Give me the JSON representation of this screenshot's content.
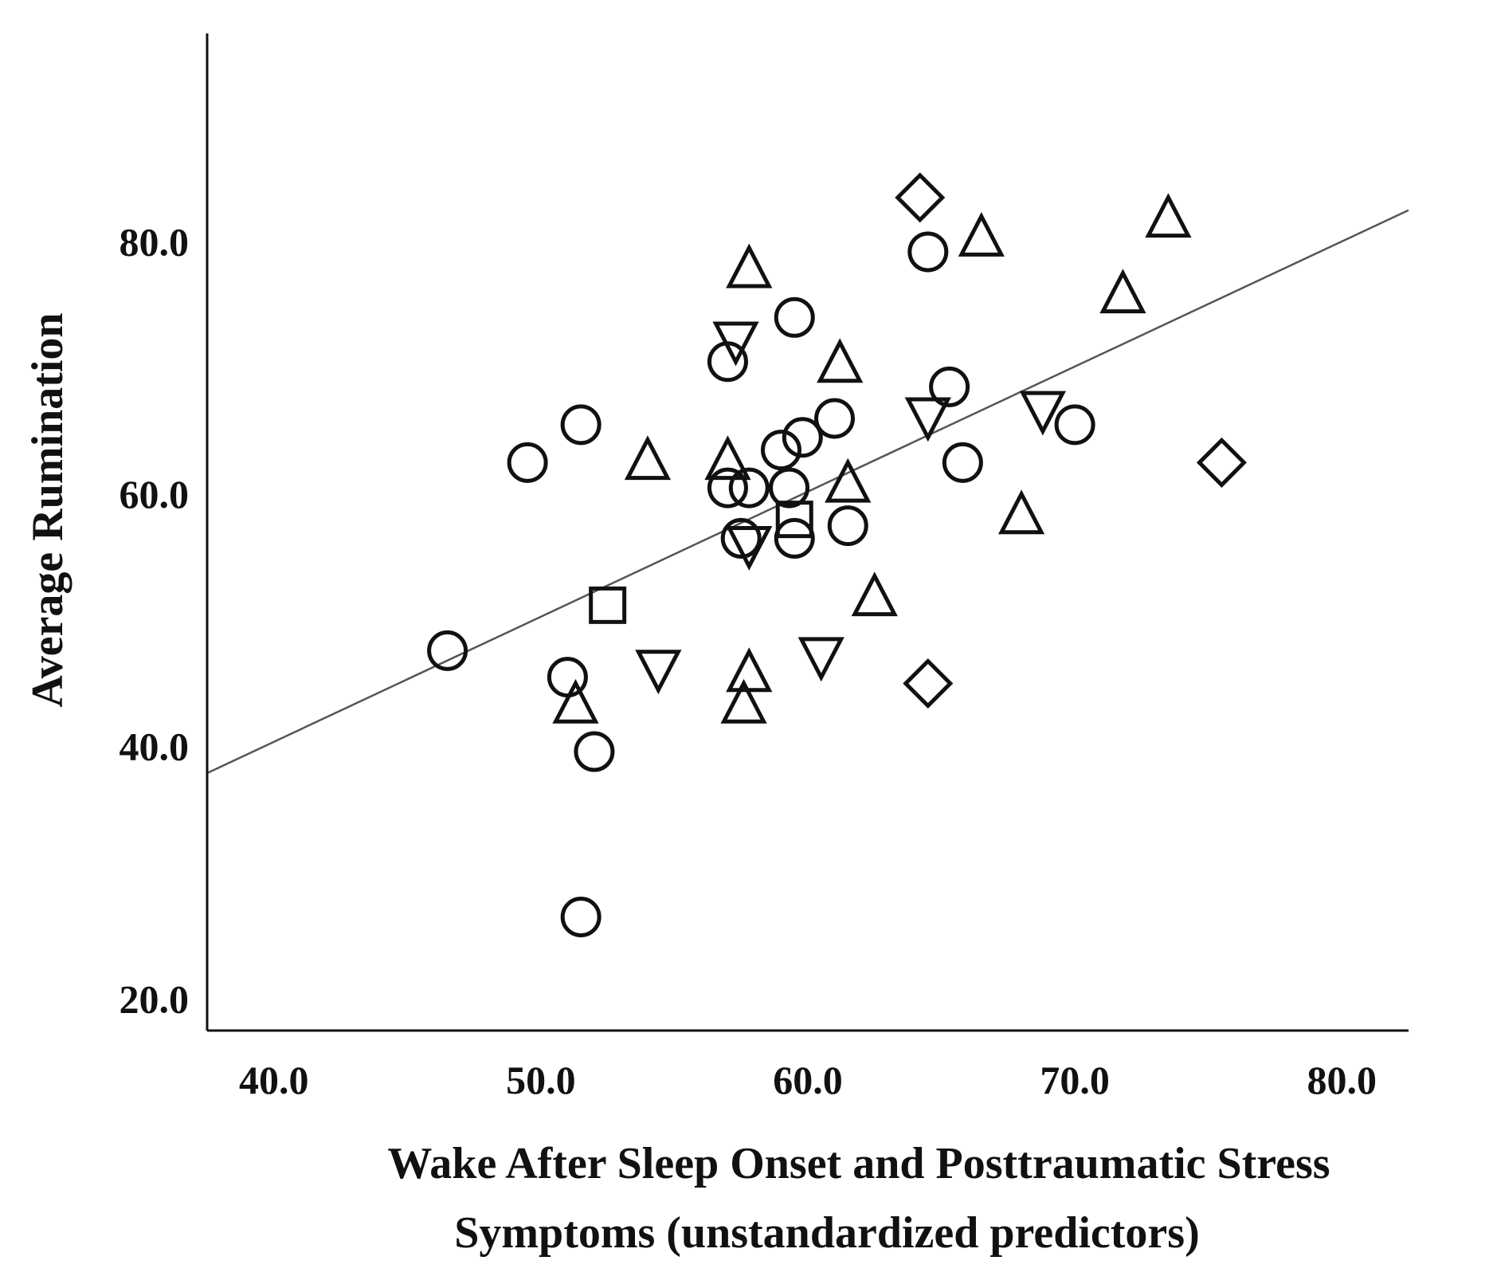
{
  "chart_data": {
    "type": "scatter",
    "title": "",
    "xlabel_lines": [
      "Wake After Sleep Onset and Posttraumatic Stress",
      "Symptoms (unstandardized predictors)"
    ],
    "ylabel": "Average Rumination",
    "xlim": [
      37.5,
      82.5
    ],
    "ylim": [
      17.5,
      96.5
    ],
    "x_ticks": [
      40,
      50,
      60,
      70,
      80
    ],
    "x_tick_labels": [
      "40.0",
      "50.0",
      "60.0",
      "70.0",
      "80.0"
    ],
    "y_ticks": [
      20,
      40,
      60,
      80
    ],
    "y_tick_labels": [
      "20.0",
      "40.0",
      "60.0",
      "80.0"
    ],
    "grid": false,
    "legend": "none",
    "fit_line": {
      "x": [
        37.5,
        82.5
      ],
      "y": [
        37.9,
        82.5
      ]
    },
    "points": [
      {
        "x": 46.5,
        "y": 47.6,
        "marker": "circle"
      },
      {
        "x": 49.5,
        "y": 62.5,
        "marker": "circle"
      },
      {
        "x": 51.0,
        "y": 45.5,
        "marker": "circle"
      },
      {
        "x": 51.5,
        "y": 65.5,
        "marker": "circle"
      },
      {
        "x": 52.0,
        "y": 39.6,
        "marker": "circle"
      },
      {
        "x": 51.5,
        "y": 26.5,
        "marker": "circle"
      },
      {
        "x": 52.5,
        "y": 51.2,
        "marker": "square"
      },
      {
        "x": 51.3,
        "y": 43.5,
        "marker": "triangle-up"
      },
      {
        "x": 54.0,
        "y": 62.8,
        "marker": "triangle-up"
      },
      {
        "x": 54.4,
        "y": 46.0,
        "marker": "triangle-down"
      },
      {
        "x": 57.0,
        "y": 70.5,
        "marker": "circle"
      },
      {
        "x": 57.3,
        "y": 72.0,
        "marker": "triangle-down"
      },
      {
        "x": 57.0,
        "y": 62.8,
        "marker": "triangle-up"
      },
      {
        "x": 57.0,
        "y": 60.5,
        "marker": "circle"
      },
      {
        "x": 57.5,
        "y": 56.5,
        "marker": "circle"
      },
      {
        "x": 57.8,
        "y": 60.5,
        "marker": "circle"
      },
      {
        "x": 57.8,
        "y": 55.8,
        "marker": "triangle-down"
      },
      {
        "x": 57.8,
        "y": 78.0,
        "marker": "triangle-up"
      },
      {
        "x": 57.8,
        "y": 46.0,
        "marker": "triangle-up"
      },
      {
        "x": 57.6,
        "y": 43.5,
        "marker": "triangle-up"
      },
      {
        "x": 59.0,
        "y": 63.5,
        "marker": "circle"
      },
      {
        "x": 59.3,
        "y": 60.5,
        "marker": "circle"
      },
      {
        "x": 59.5,
        "y": 74.0,
        "marker": "circle"
      },
      {
        "x": 59.5,
        "y": 56.5,
        "marker": "circle"
      },
      {
        "x": 59.5,
        "y": 58.0,
        "marker": "square"
      },
      {
        "x": 59.8,
        "y": 64.5,
        "marker": "circle"
      },
      {
        "x": 60.5,
        "y": 47.0,
        "marker": "triangle-down"
      },
      {
        "x": 61.0,
        "y": 66.0,
        "marker": "circle"
      },
      {
        "x": 61.2,
        "y": 70.5,
        "marker": "triangle-up"
      },
      {
        "x": 61.5,
        "y": 61.0,
        "marker": "triangle-up"
      },
      {
        "x": 61.5,
        "y": 57.5,
        "marker": "circle"
      },
      {
        "x": 62.5,
        "y": 52.0,
        "marker": "triangle-up"
      },
      {
        "x": 64.2,
        "y": 83.5,
        "marker": "diamond"
      },
      {
        "x": 64.5,
        "y": 79.2,
        "marker": "circle"
      },
      {
        "x": 64.5,
        "y": 66.0,
        "marker": "triangle-down"
      },
      {
        "x": 64.5,
        "y": 45.0,
        "marker": "diamond"
      },
      {
        "x": 65.3,
        "y": 68.5,
        "marker": "circle"
      },
      {
        "x": 65.8,
        "y": 62.5,
        "marker": "circle"
      },
      {
        "x": 66.5,
        "y": 80.5,
        "marker": "triangle-up"
      },
      {
        "x": 68.0,
        "y": 58.5,
        "marker": "triangle-up"
      },
      {
        "x": 68.8,
        "y": 66.5,
        "marker": "triangle-down"
      },
      {
        "x": 70.0,
        "y": 65.5,
        "marker": "circle"
      },
      {
        "x": 71.8,
        "y": 76.0,
        "marker": "triangle-up"
      },
      {
        "x": 73.5,
        "y": 82.0,
        "marker": "triangle-up"
      },
      {
        "x": 75.5,
        "y": 62.5,
        "marker": "diamond"
      }
    ]
  }
}
